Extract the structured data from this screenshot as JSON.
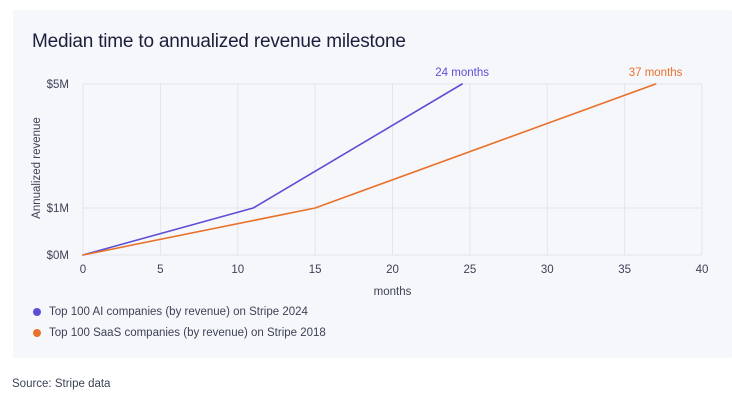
{
  "chart_data": {
    "type": "line",
    "title": "Median time to annualized revenue milestone",
    "xlabel": "months",
    "ylabel": "Annualized revenue",
    "x_ticks": [
      0,
      5,
      10,
      15,
      20,
      25,
      30,
      35,
      40
    ],
    "xlim": [
      0,
      40
    ],
    "y_ticks": [
      {
        "value": 0,
        "label": "$0M"
      },
      {
        "value": 1,
        "label": "$1M"
      },
      {
        "value": 5,
        "label": "$5M"
      }
    ],
    "ylim": [
      0,
      5
    ],
    "grid": true,
    "legend_position": "bottom-left",
    "series": [
      {
        "name": "Top 100 AI companies (by revenue) on Stripe 2024",
        "color": "#5b4fd6",
        "points": [
          [
            0,
            0
          ],
          [
            11,
            1
          ],
          [
            24.5,
            5
          ]
        ],
        "end_label": "24 months"
      },
      {
        "name": "Top 100 SaaS companies (by revenue) on Stripe 2018",
        "color": "#e8722c",
        "points": [
          [
            0,
            0
          ],
          [
            15,
            1
          ],
          [
            37,
            5
          ]
        ],
        "end_label": "37 months"
      }
    ]
  },
  "source": "Source: Stripe data"
}
